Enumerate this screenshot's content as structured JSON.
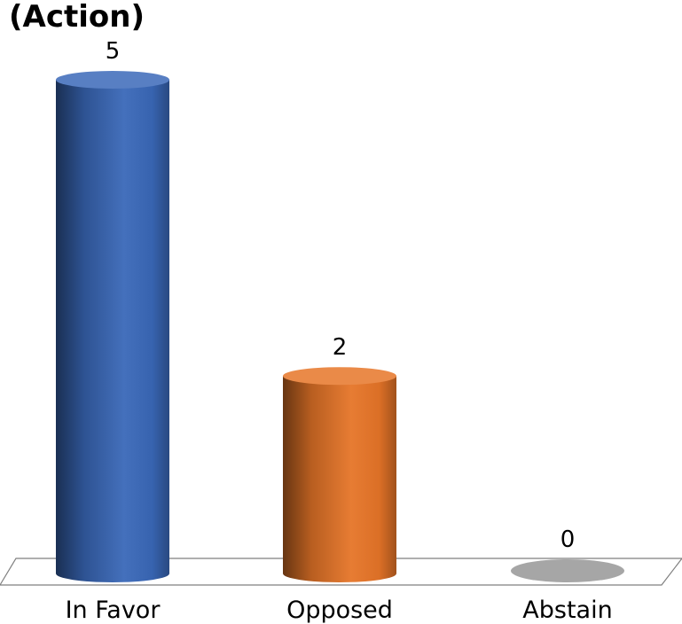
{
  "chart_data": {
    "type": "bar",
    "title": "(Action)",
    "categories": [
      "In Favor",
      "Opposed",
      "Abstain"
    ],
    "values": [
      5,
      2,
      0
    ],
    "data_labels": [
      "5",
      "2",
      "0"
    ],
    "colors": [
      "#3a68b8",
      "#e67528",
      "#a6a6a6"
    ],
    "ylim": [
      0,
      5
    ],
    "style": "3d-cylinder",
    "grid": false,
    "legend": "none"
  }
}
